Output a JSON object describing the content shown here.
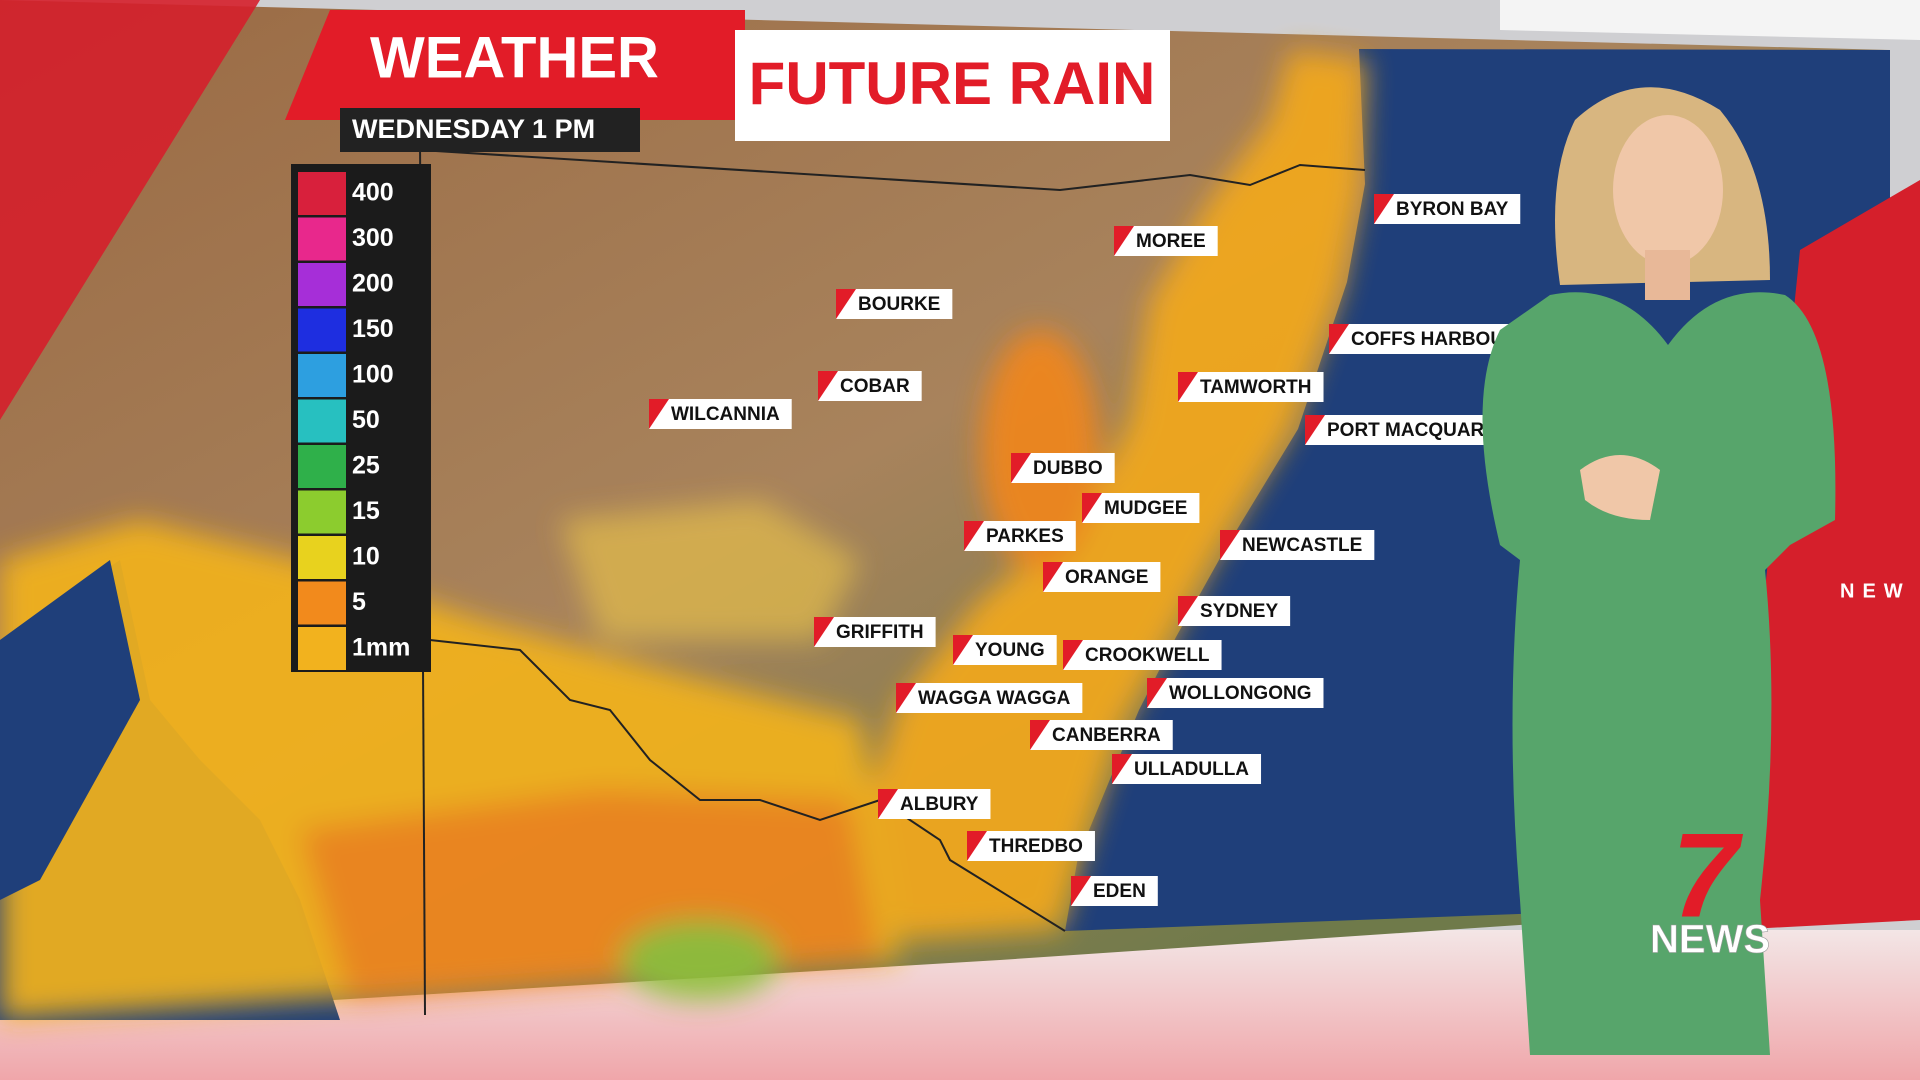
{
  "header": {
    "title": "WEATHER",
    "subtitle": "FUTURE RAIN",
    "time": "WEDNESDAY 1 PM"
  },
  "legend": [
    {
      "label": "400",
      "color": "#d8203c"
    },
    {
      "label": "300",
      "color": "#e8288c"
    },
    {
      "label": "200",
      "color": "#a62ed8"
    },
    {
      "label": "150",
      "color": "#1e2ee0"
    },
    {
      "label": "100",
      "color": "#2d9fe0"
    },
    {
      "label": "50",
      "color": "#27c0c0"
    },
    {
      "label": "25",
      "color": "#2fb04a"
    },
    {
      "label": "15",
      "color": "#8ccc2e"
    },
    {
      "label": "10",
      "color": "#e8d21e"
    },
    {
      "label": "5",
      "color": "#f28a1c"
    },
    {
      "label": "1mm",
      "color": "#f2b21e"
    }
  ],
  "cities": [
    "BYRON BAY",
    "MOREE",
    "BOURKE",
    "COFFS HARBOUR",
    "COBAR",
    "TAMWORTH",
    "WILCANNIA",
    "PORT MACQUARIE",
    "DUBBO",
    "MUDGEE",
    "PARKES",
    "NEWCASTLE",
    "ORANGE",
    "SYDNEY",
    "GRIFFITH",
    "YOUNG",
    "CROOKWELL",
    "WAGGA WAGGA",
    "WOLLONGONG",
    "CANBERRA",
    "ULLADULLA",
    "ALBURY",
    "THREDBO",
    "EDEN"
  ],
  "logo": {
    "mark": "7",
    "text": "NEWS"
  },
  "side_text": "NEW"
}
